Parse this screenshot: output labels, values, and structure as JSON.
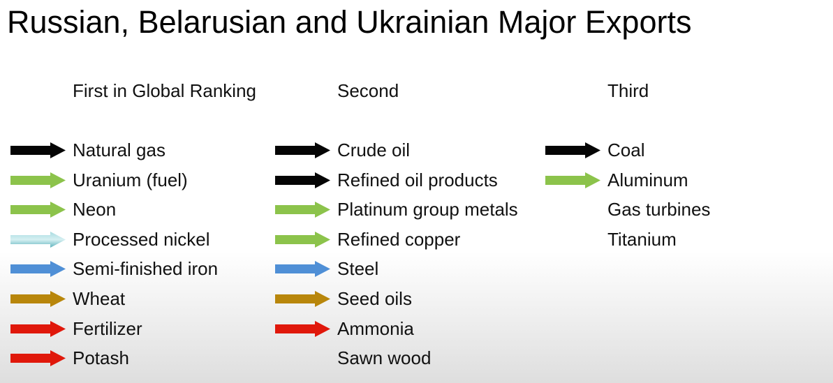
{
  "title": "Russian, Belarusian and Ukrainian Major Exports",
  "colors": {
    "black": "#050505",
    "green": "#8cc34b",
    "teal": "#8fd0d6",
    "blue": "#4f8fd6",
    "brown": "#b8860b",
    "red": "#e0180b"
  },
  "columns": [
    {
      "header": "First in Global Ranking",
      "items": [
        {
          "label": "Natural gas",
          "arrow": "black"
        },
        {
          "label": "Uranium (fuel)",
          "arrow": "green"
        },
        {
          "label": "Neon",
          "arrow": "green"
        },
        {
          "label": "Processed nickel",
          "arrow": "teal"
        },
        {
          "label": "Semi-finished iron",
          "arrow": "blue"
        },
        {
          "label": "Wheat",
          "arrow": "brown"
        },
        {
          "label": "Fertilizer",
          "arrow": "red"
        },
        {
          "label": "Potash",
          "arrow": "red"
        }
      ]
    },
    {
      "header": "Second",
      "items": [
        {
          "label": "Crude oil",
          "arrow": "black"
        },
        {
          "label": "Refined oil products",
          "arrow": "black"
        },
        {
          "label": "Platinum group metals",
          "arrow": "green"
        },
        {
          "label": "Refined copper",
          "arrow": "green"
        },
        {
          "label": "Steel",
          "arrow": "blue"
        },
        {
          "label": "Seed oils",
          "arrow": "brown"
        },
        {
          "label": "Ammonia",
          "arrow": "red"
        },
        {
          "label": "Sawn wood",
          "arrow": null
        }
      ]
    },
    {
      "header": "Third",
      "items": [
        {
          "label": "Coal",
          "arrow": "black"
        },
        {
          "label": "Aluminum",
          "arrow": "green"
        },
        {
          "label": "Gas turbines",
          "arrow": null
        },
        {
          "label": "Titanium",
          "arrow": null
        }
      ]
    }
  ]
}
